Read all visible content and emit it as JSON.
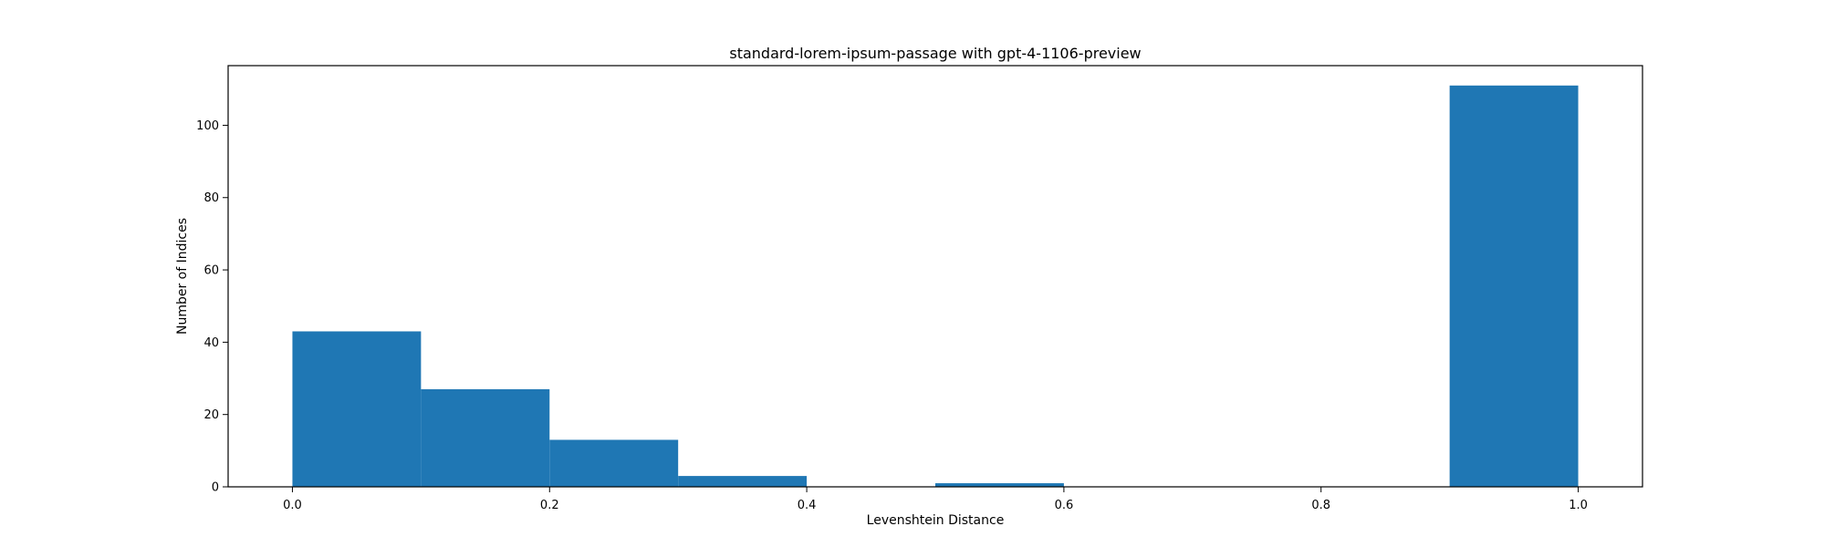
{
  "chart_data": {
    "type": "bar",
    "title": "standard-lorem-ipsum-passage with gpt-4-1106-preview",
    "xlabel": "Levenshtein Distance",
    "ylabel": "Number of Indices",
    "xlim": [
      -0.05,
      1.05
    ],
    "ylim": [
      0,
      116.5
    ],
    "xticks": [
      0.0,
      0.2,
      0.4,
      0.6,
      0.8,
      1.0
    ],
    "xtick_labels": [
      "0.0",
      "0.2",
      "0.4",
      "0.6",
      "0.8",
      "1.0"
    ],
    "yticks": [
      0,
      20,
      40,
      60,
      80,
      100
    ],
    "ytick_labels": [
      "0",
      "20",
      "40",
      "60",
      "80",
      "100"
    ],
    "bins": [
      {
        "start": 0.0,
        "end": 0.1,
        "value": 43
      },
      {
        "start": 0.1,
        "end": 0.2,
        "value": 27
      },
      {
        "start": 0.2,
        "end": 0.3,
        "value": 13
      },
      {
        "start": 0.3,
        "end": 0.4,
        "value": 3
      },
      {
        "start": 0.4,
        "end": 0.5,
        "value": 0
      },
      {
        "start": 0.5,
        "end": 0.6,
        "value": 1
      },
      {
        "start": 0.6,
        "end": 0.7,
        "value": 0
      },
      {
        "start": 0.7,
        "end": 0.8,
        "value": 0
      },
      {
        "start": 0.8,
        "end": 0.9,
        "value": 0
      },
      {
        "start": 0.9,
        "end": 1.0,
        "value": 111
      }
    ],
    "grid": false,
    "bar_color": "#1f77b4"
  }
}
